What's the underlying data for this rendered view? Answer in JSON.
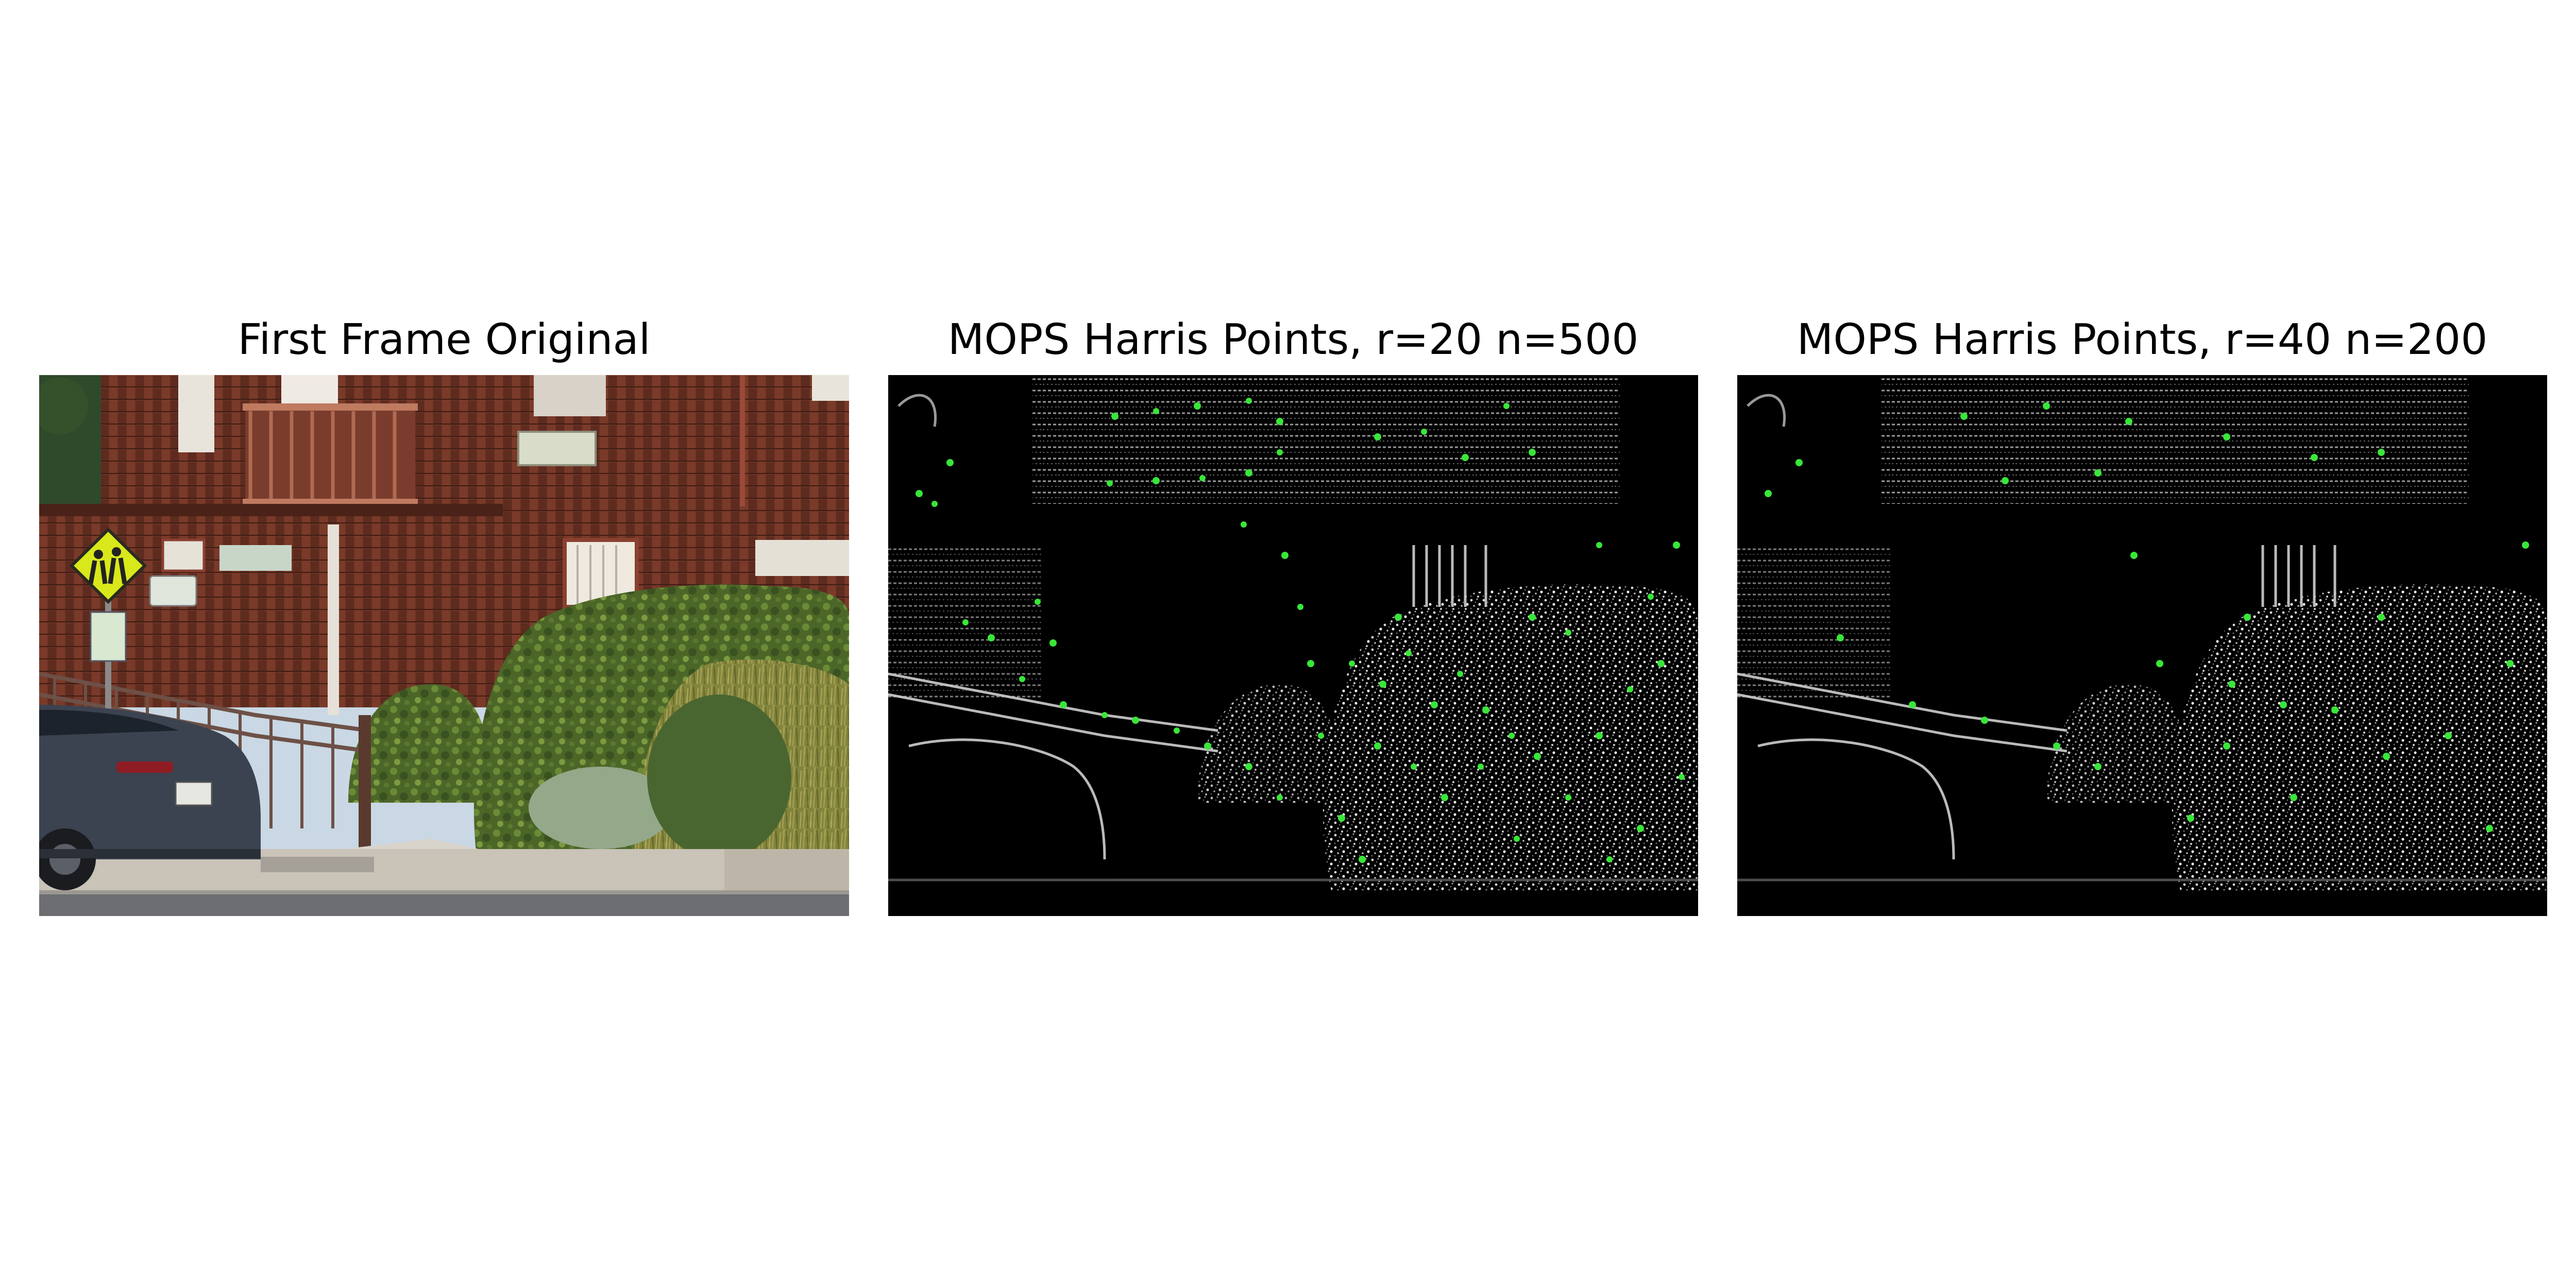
{
  "figure": {
    "panels": [
      {
        "title": "First Frame Original"
      },
      {
        "title": "MOPS Harris Points, r=20 n=500"
      },
      {
        "title": "MOPS Harris Points, r=40 n=200"
      }
    ]
  },
  "colors": {
    "keypoint": "#39e639",
    "background": "#000000",
    "siding": "#6b3224",
    "hedge": "#4f6a2a",
    "sign": "#d9e81a",
    "car": "#3b4350",
    "sidewalk": "#c9c3b8"
  },
  "icon_names": [
    "school-crossing-sign-icon",
    "car-icon"
  ]
}
